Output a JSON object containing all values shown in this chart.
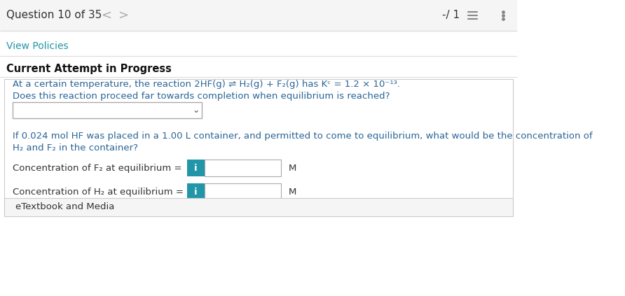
{
  "bg_color": "#ffffff",
  "header_bg": "#f5f5f5",
  "header_text": "Question 10 of 35",
  "header_nav_left": "<",
  "header_nav_right": ">",
  "score_text": "-/ 1",
  "header_text_color": "#333333",
  "view_policies_text": "View Policies",
  "view_policies_color": "#2196a8",
  "current_attempt_text": "Current Attempt in Progress",
  "reaction_line1": "At a certain temperature, the reaction 2HF(g) ⇌ H₂(g) + F₂(g) has Kᶜ = 1.2 × 10⁻¹³.",
  "reaction_line2": "Does this reaction proceed far towards completion when equilibrium is reached?",
  "reaction_color": "#2a6496",
  "para_line1": "If 0.024 mol HF was placed in a 1.00 L container, and permitted to come to equilibrium, what would be the concentration of",
  "para_line2": "H₂ and F₂ in the container?",
  "label_f2": "Concentration of F₂ at equilibrium =",
  "label_h2": "Concentration of H₂ at equilibrium =",
  "unit_m": "M",
  "info_btn_color": "#2196a8",
  "info_btn_text": "i",
  "etextbook_text": "eTextbook and Media",
  "etextbook_bg": "#f5f5f5",
  "border_color": "#cccccc",
  "divider_color": "#dddddd"
}
